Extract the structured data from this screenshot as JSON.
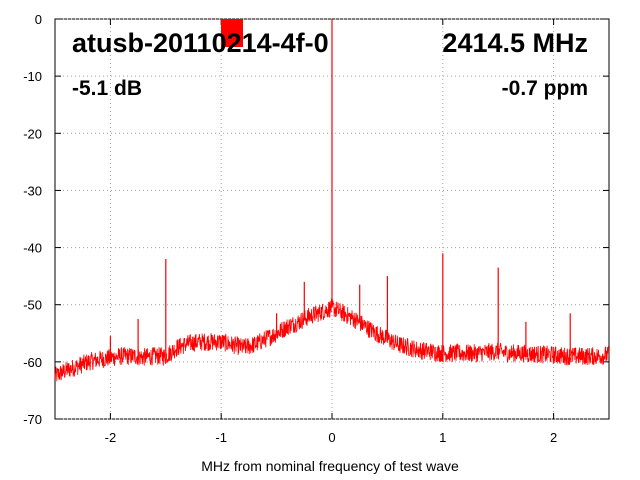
{
  "chart_data": {
    "type": "line",
    "title": "atusb-20110214-4f-0",
    "annotations": {
      "top_right": "2414.5 MHz",
      "mid_left": "-5.1 dB",
      "mid_right": "-0.7 ppm"
    },
    "xlabel": "MHz from nominal frequency of test wave",
    "ylabel": "",
    "xlim": [
      -2.5,
      2.5
    ],
    "ylim": [
      -70,
      0
    ],
    "x_ticks": [
      -2,
      -1,
      0,
      1,
      2
    ],
    "y_ticks": [
      0,
      -10,
      -20,
      -30,
      -40,
      -50,
      -60,
      -70
    ],
    "grid": true,
    "series_color": "#ff0000",
    "marker_color": "#ff0000",
    "series": [
      {
        "x": [
          -2.5,
          -2.4,
          -2.3,
          -2.2,
          -2.1,
          -2.0,
          -1.9,
          -1.8,
          -1.7,
          -1.6,
          -1.5,
          -1.4,
          -1.3,
          -1.2,
          -1.1,
          -1.0,
          -0.9,
          -0.8,
          -0.7,
          -0.6,
          -0.5,
          -0.4,
          -0.3,
          -0.2,
          -0.1,
          0.0,
          0.1,
          0.2,
          0.3,
          0.4,
          0.5,
          0.6,
          0.7,
          0.8,
          0.9,
          1.0,
          1.1,
          1.2,
          1.3,
          1.4,
          1.5,
          1.6,
          1.7,
          1.8,
          1.9,
          2.0,
          2.1,
          2.2,
          2.3,
          2.4,
          2.5
        ],
        "values": [
          -62.5,
          -61.5,
          -60.8,
          -60.0,
          -59.6,
          -59.3,
          -59.0,
          -59.0,
          -59.2,
          -59.0,
          -59.0,
          -57.5,
          -56.8,
          -56.5,
          -56.5,
          -56.5,
          -57.0,
          -57.5,
          -57.0,
          -56.0,
          -55.0,
          -53.8,
          -53.0,
          -52.0,
          -51.3,
          -50.5,
          -51.5,
          -52.5,
          -53.8,
          -55.0,
          -56.0,
          -57.0,
          -57.5,
          -58.0,
          -58.2,
          -58.5,
          -58.5,
          -58.5,
          -58.5,
          -58.3,
          -58.2,
          -58.5,
          -58.5,
          -58.6,
          -58.7,
          -58.8,
          -59.0,
          -59.0,
          -59.0,
          -59.0,
          -58.8
        ]
      }
    ],
    "spurs": [
      {
        "x": -2.0,
        "y": -55.5
      },
      {
        "x": -1.75,
        "y": -52.5
      },
      {
        "x": -1.5,
        "y": -42.0
      },
      {
        "x": -0.5,
        "y": -51.5
      },
      {
        "x": -0.25,
        "y": -46.0
      },
      {
        "x": 0.0,
        "y": 0.0
      },
      {
        "x": 0.25,
        "y": -46.5
      },
      {
        "x": 0.5,
        "y": -45.0
      },
      {
        "x": 1.0,
        "y": -41.0
      },
      {
        "x": 1.5,
        "y": -43.5
      },
      {
        "x": 1.75,
        "y": -53.0
      },
      {
        "x": 2.15,
        "y": -51.5
      }
    ]
  }
}
